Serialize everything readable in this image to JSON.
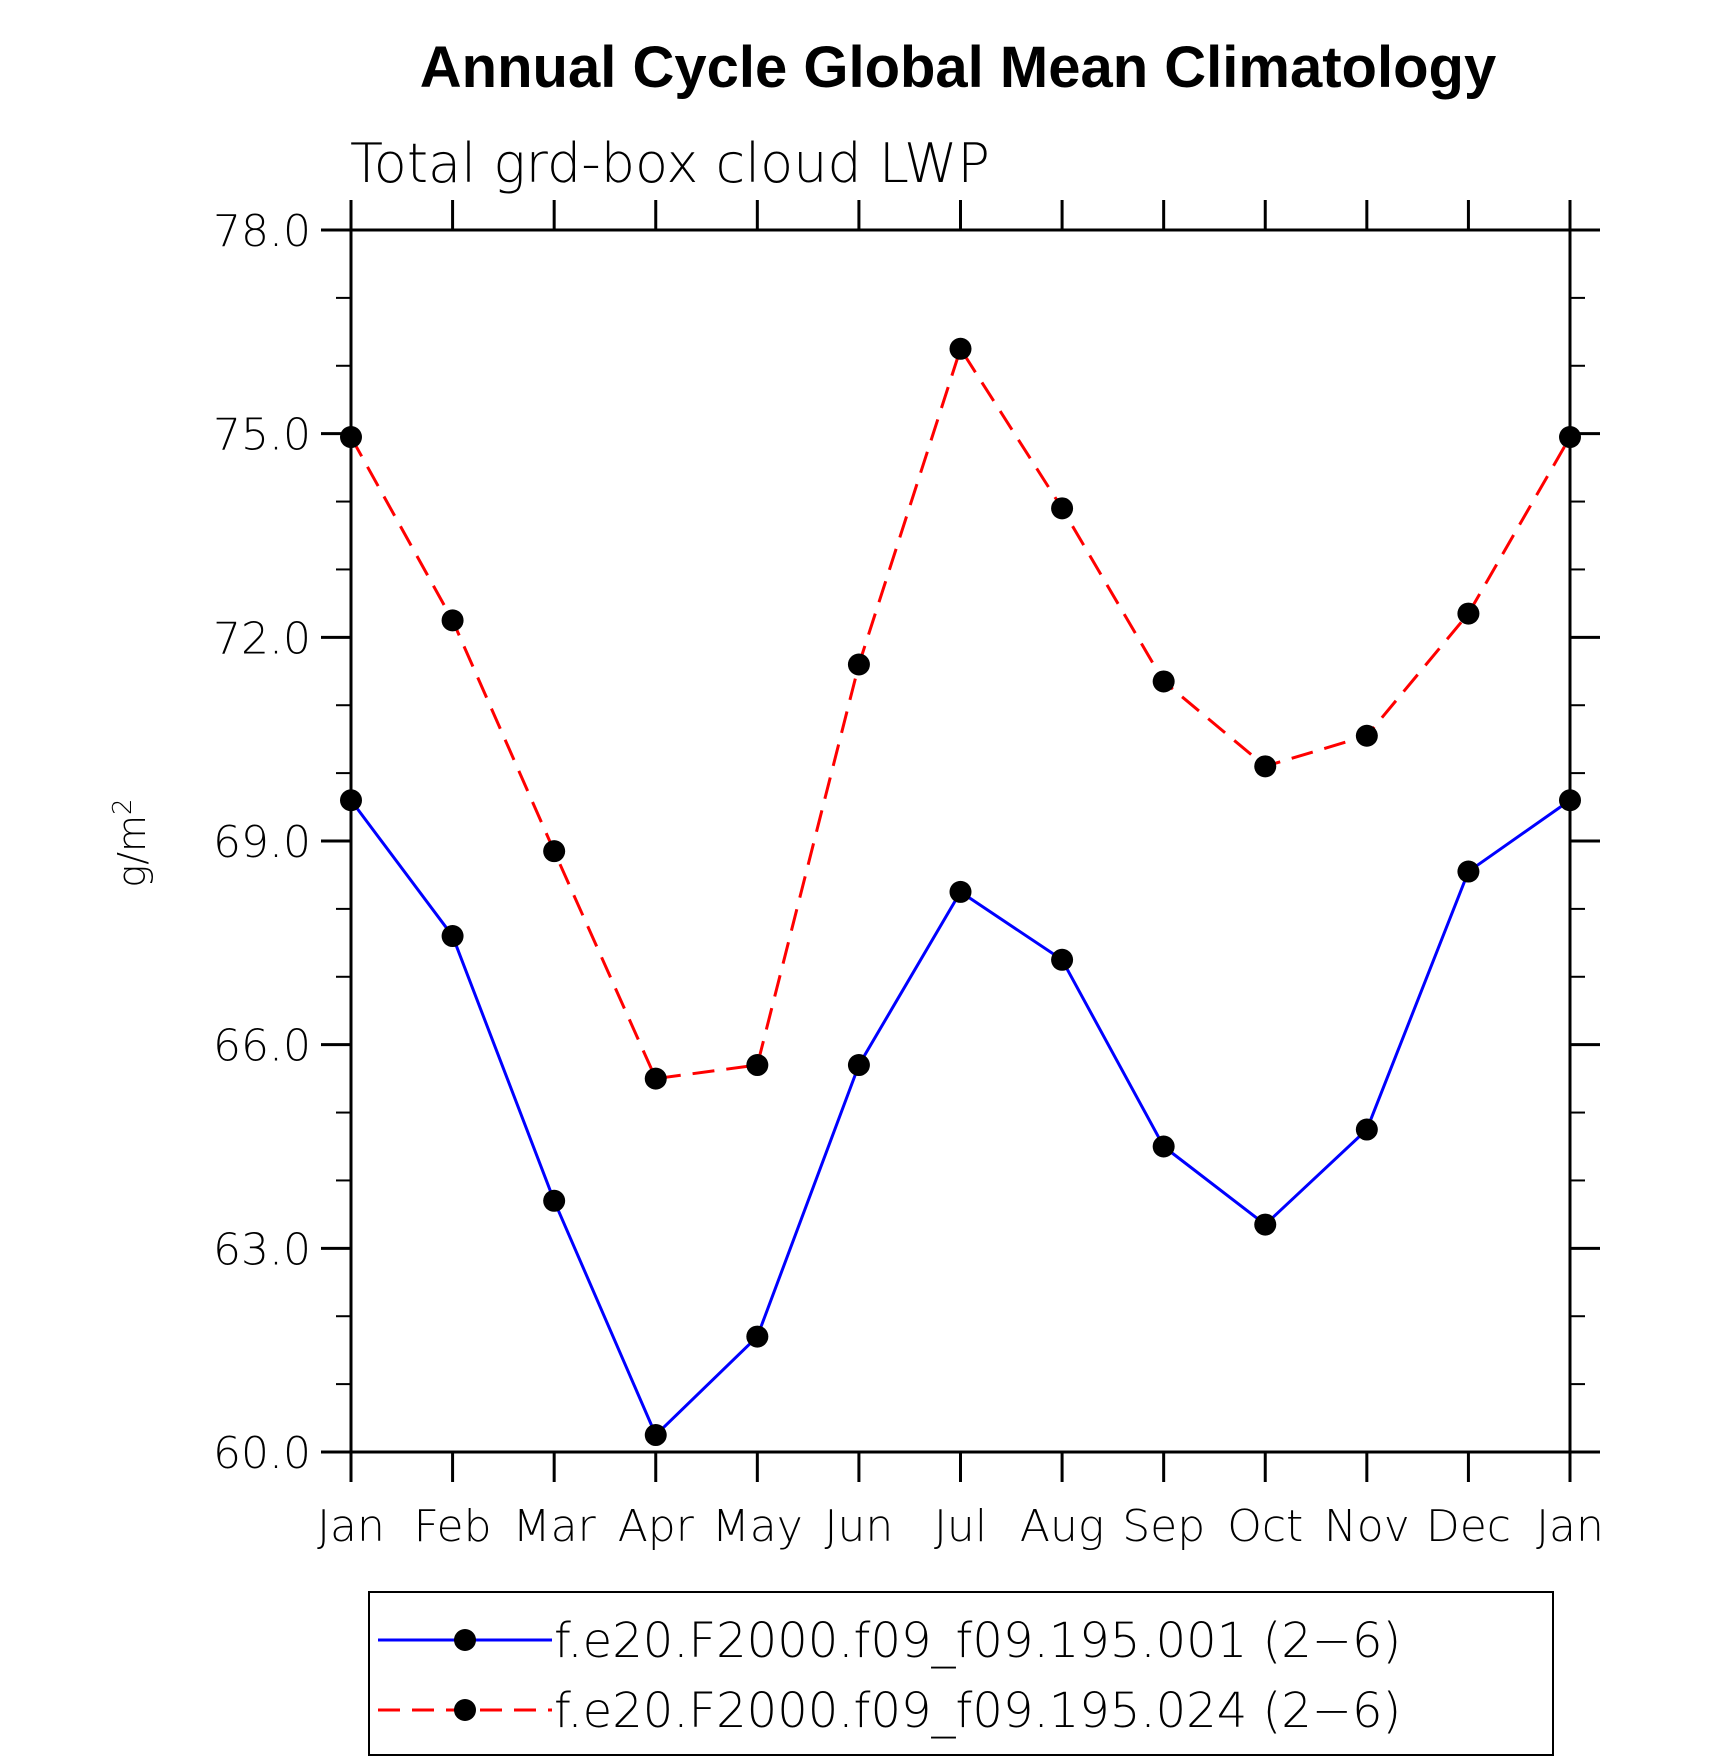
{
  "chart_data": {
    "type": "line",
    "title": "Annual Cycle Global Mean Climatology",
    "subtitle": "Total grd-box cloud LWP",
    "ylabel_base": "g/m",
    "ylabel_sup": "2",
    "xlabel": "",
    "categories": [
      "Jan",
      "Feb",
      "Mar",
      "Apr",
      "May",
      "Jun",
      "Jul",
      "Aug",
      "Sep",
      "Oct",
      "Nov",
      "Dec",
      "Jan"
    ],
    "ylim": [
      60.0,
      78.0
    ],
    "yticks": [
      "60.0",
      "63.0",
      "66.0",
      "69.0",
      "72.0",
      "75.0",
      "78.0"
    ],
    "ytick_values": [
      60,
      63,
      66,
      69,
      72,
      75,
      78
    ],
    "grid": false,
    "legend_position": "bottom",
    "series": [
      {
        "name": "f.e20.F2000.f09_f09.195.001 (2−6)",
        "color": "#0000ff",
        "style": "solid",
        "marker": "filled-circle",
        "values": [
          69.6,
          67.6,
          63.7,
          60.25,
          61.7,
          65.7,
          68.25,
          67.25,
          64.5,
          63.35,
          64.75,
          68.55,
          69.6
        ]
      },
      {
        "name": "f.e20.F2000.f09_f09.195.024 (2−6)",
        "color": "#ff0000",
        "style": "dashed",
        "marker": "filled-circle",
        "values": [
          74.95,
          72.25,
          68.85,
          65.5,
          65.7,
          71.6,
          76.25,
          73.9,
          71.35,
          70.1,
          70.55,
          72.35,
          74.95
        ]
      }
    ]
  }
}
